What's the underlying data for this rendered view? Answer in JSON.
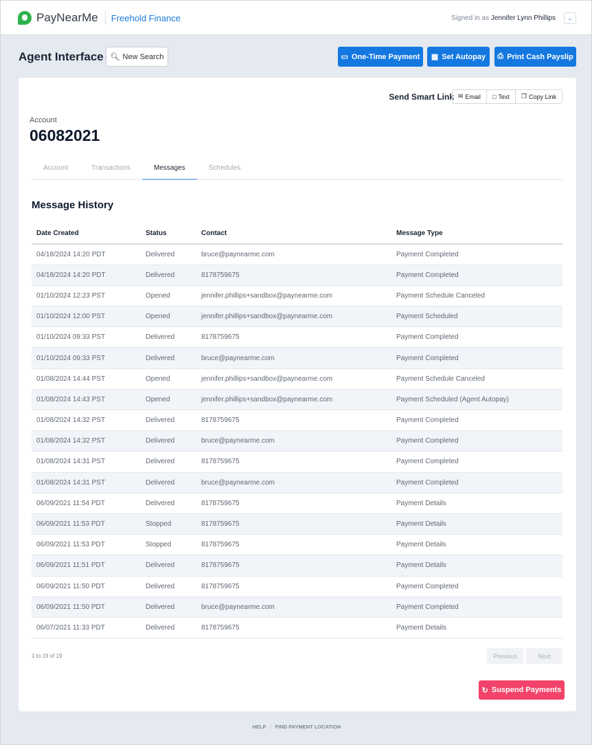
{
  "header": {
    "brand": "PayNearMe",
    "org": "Freehold Finance",
    "signed_prefix": "Signed in as",
    "user": "Jennifer Lynn Phillips"
  },
  "toolbar": {
    "title": "Agent Interface",
    "new_search": "New Search",
    "one_time": "One-Time Payment",
    "autopay": "Set Autopay",
    "payslip": "Print Cash Payslip"
  },
  "smart_link": {
    "label": "Send Smart Link",
    "email": "Email",
    "text": "Text",
    "copy": "Copy Link"
  },
  "account": {
    "label": "Account",
    "number": "06082021"
  },
  "tabs": [
    {
      "label": "Account"
    },
    {
      "label": "Transactions"
    },
    {
      "label": "Messages"
    },
    {
      "label": "Schedules"
    }
  ],
  "active_tab": "Messages",
  "section_title": "Message History",
  "table": {
    "headers": [
      "Date Created",
      "Status",
      "Contact",
      "Message Type"
    ],
    "rows": [
      [
        "04/18/2024 14:20 PDT",
        "Delivered",
        "bruce@paynearme.com",
        "Payment Completed"
      ],
      [
        "04/18/2024 14:20 PDT",
        "Delivered",
        "8178759675",
        "Payment Completed"
      ],
      [
        "01/10/2024 12:23 PST",
        "Opened",
        "jennifer.phillips+sandbox@paynearme.com",
        "Payment Schedule Canceled"
      ],
      [
        "01/10/2024 12:00 PST",
        "Opened",
        "jennifer.phillips+sandbox@paynearme.com",
        "Payment Scheduled"
      ],
      [
        "01/10/2024 09:33 PST",
        "Delivered",
        "8178759675",
        "Payment Completed"
      ],
      [
        "01/10/2024 09:33 PST",
        "Delivered",
        "bruce@paynearme.com",
        "Payment Completed"
      ],
      [
        "01/08/2024 14:44 PST",
        "Opened",
        "jennifer.phillips+sandbox@paynearme.com",
        "Payment Schedule Canceled"
      ],
      [
        "01/08/2024 14:43 PST",
        "Opened",
        "jennifer.phillips+sandbox@paynearme.com",
        "Payment Scheduled (Agent Autopay)"
      ],
      [
        "01/08/2024 14:32 PST",
        "Delivered",
        "8178759675",
        "Payment Completed"
      ],
      [
        "01/08/2024 14:32 PST",
        "Delivered",
        "bruce@paynearme.com",
        "Payment Completed"
      ],
      [
        "01/08/2024 14:31 PST",
        "Delivered",
        "8178759675",
        "Payment Completed"
      ],
      [
        "01/08/2024 14:31 PST",
        "Delivered",
        "bruce@paynearme.com",
        "Payment Completed"
      ],
      [
        "06/09/2021 11:54 PDT",
        "Delivered",
        "8178759675",
        "Payment Details"
      ],
      [
        "06/09/2021 11:53 PDT",
        "Stopped",
        "8178759675",
        "Payment Details"
      ],
      [
        "06/09/2021 11:53 PDT",
        "Stopped",
        "8178759675",
        "Payment Details"
      ],
      [
        "06/09/2021 11:51 PDT",
        "Delivered",
        "8178759675",
        "Payment Details"
      ],
      [
        "06/09/2021 11:50 PDT",
        "Delivered",
        "8178759675",
        "Payment Completed"
      ],
      [
        "06/09/2021 11:50 PDT",
        "Delivered",
        "bruce@paynearme.com",
        "Payment Completed"
      ],
      [
        "06/07/2021 11:33 PDT",
        "Delivered",
        "8178759675",
        "Payment Details"
      ]
    ]
  },
  "pagination": {
    "count": "1 to 19 of 19",
    "previous": "Previous",
    "next": "Next"
  },
  "suspend": "Suspend Payments",
  "footer": {
    "help": "HELP",
    "find": "FIND PAYMENT LOCATION"
  },
  "colors": {
    "primary": "#1478e0",
    "danger": "#f2446a",
    "brand": "#2fb24c"
  }
}
